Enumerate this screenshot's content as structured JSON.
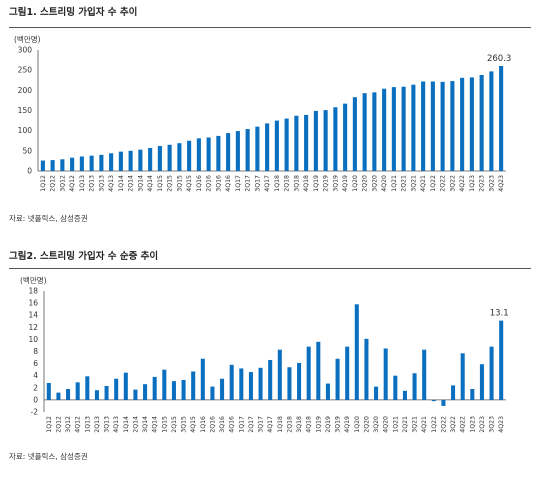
{
  "figures": [
    {
      "title": "그림1.  스트리밍 가입자 수 추이",
      "source": "자료: 넷플릭스, 삼성증권"
    },
    {
      "title": "그림2.  스트리밍 가입자 수 순증 추이",
      "source": "자료: 넷플릭스, 삼성증권"
    }
  ],
  "colors": {
    "bar": "#0a6fbf",
    "axis": "#555555"
  },
  "chart_data": [
    {
      "type": "bar",
      "unit_label": "(백만명)",
      "ylim": [
        0,
        300
      ],
      "yticks": [
        0,
        50,
        100,
        150,
        200,
        250,
        300
      ],
      "categories": [
        "1Q12",
        "2Q12",
        "3Q12",
        "4Q12",
        "1Q13",
        "2Q13",
        "3Q13",
        "4Q13",
        "1Q14",
        "2Q14",
        "3Q14",
        "4Q14",
        "1Q15",
        "2Q15",
        "3Q15",
        "4Q15",
        "1Q16",
        "2Q16",
        "3Q16",
        "4Q16",
        "1Q17",
        "2Q17",
        "3Q17",
        "4Q17",
        "1Q18",
        "2Q18",
        "3Q18",
        "4Q18",
        "1Q19",
        "2Q19",
        "3Q19",
        "4Q19",
        "1Q20",
        "2Q20",
        "3Q20",
        "4Q20",
        "1Q21",
        "2Q21",
        "3Q21",
        "4Q21",
        "1Q22",
        "2Q22",
        "3Q22",
        "4Q22",
        "1Q23",
        "2Q23",
        "3Q23",
        "4Q23"
      ],
      "xtick_labels": [
        "1Q12",
        "2Q12",
        "3Q12",
        "4Q12",
        "1Q13",
        "2Q13",
        "3Q13",
        "4Q13",
        "1Q14",
        "2Q14",
        "3Q14",
        "4Q14",
        "1Q15",
        "2Q15",
        "3Q15",
        "4Q15",
        "1Q16",
        "2Q16",
        "3Q16",
        "4Q16",
        "1Q17",
        "2Q17",
        "3Q17",
        "4Q17",
        "1Q18",
        "2Q18",
        "3Q18",
        "4Q18",
        "1Q19",
        "2Q19",
        "3Q19",
        "4Q19",
        "1Q20",
        "2Q20",
        "3Q20",
        "4Q20",
        "1Q21",
        "2Q21",
        "3Q21",
        "4Q21",
        "1Q22",
        "2Q22",
        "3Q22",
        "4Q22",
        "1Q23",
        "2Q23",
        "3Q23",
        "4Q23"
      ],
      "values": [
        26,
        27,
        29,
        33,
        36,
        38,
        40,
        44,
        48,
        50,
        53,
        57,
        62,
        65,
        69,
        75,
        81,
        83,
        87,
        94,
        99,
        104,
        110,
        118,
        125,
        130,
        137,
        139,
        149,
        151,
        158,
        167,
        183,
        193,
        195,
        204,
        208,
        209,
        214,
        222,
        222,
        221,
        223,
        231,
        232,
        238,
        247,
        260.3
      ],
      "data_labels": [
        {
          "index": 47,
          "text": "260.3"
        }
      ]
    },
    {
      "type": "bar",
      "unit_label": "(백만명)",
      "ylim": [
        -2,
        18
      ],
      "yticks": [
        -2,
        0,
        2,
        4,
        6,
        8,
        10,
        12,
        14,
        16,
        18
      ],
      "categories": [
        "1Q12",
        "2Q12",
        "3Q12",
        "4Q12",
        "1Q13",
        "2Q13",
        "3Q13",
        "4Q13",
        "1Q14",
        "2Q14",
        "3Q14",
        "4Q14",
        "1Q15",
        "2Q15",
        "3Q15",
        "4Q15",
        "1Q16",
        "2Q16",
        "3Q16",
        "4Q16",
        "1Q17",
        "2Q17",
        "3Q17",
        "4Q17",
        "1Q18",
        "2Q18",
        "3Q18",
        "4Q18",
        "1Q19",
        "2Q19",
        "3Q19",
        "4Q19",
        "1Q20",
        "2Q20",
        "3Q20",
        "4Q20",
        "1Q21",
        "2Q21",
        "3Q21",
        "4Q21",
        "1Q22",
        "2Q22",
        "3Q22",
        "4Q22",
        "1Q23",
        "2Q23",
        "3Q23",
        "4Q23"
      ],
      "xtick_labels": [
        "1Q12",
        "2Q12",
        "3Q12",
        "4Q12",
        "1Q13",
        "2Q13",
        "3Q13",
        "4Q13",
        "1Q14",
        "2Q14",
        "3Q14",
        "4Q14",
        "1Q15",
        "2Q15",
        "3Q15",
        "4Q15",
        "1Q16",
        "2Q16",
        "3Q16",
        "4Q16",
        "1Q17",
        "2Q17",
        "3Q17",
        "4Q17",
        "1Q18",
        "2Q18",
        "3Q18",
        "4Q18",
        "1Q19",
        "2Q19",
        "3Q19",
        "4Q19",
        "1Q20",
        "2Q20",
        "3Q20",
        "4Q20",
        "1Q21",
        "2Q21",
        "3Q21",
        "4Q21",
        "1Q22",
        "2Q22",
        "3Q22",
        "4Q22",
        "1Q23",
        "2Q23",
        "3Q23",
        "4Q23"
      ],
      "values": [
        2.8,
        1.2,
        1.8,
        2.9,
        3.9,
        1.6,
        2.3,
        3.5,
        4.5,
        1.7,
        2.6,
        3.8,
        5.0,
        3.1,
        3.3,
        4.7,
        6.8,
        2.2,
        3.5,
        5.8,
        5.2,
        4.6,
        5.3,
        6.6,
        8.3,
        5.4,
        6.1,
        8.8,
        9.6,
        2.7,
        6.8,
        8.8,
        15.8,
        10.1,
        2.2,
        8.5,
        4.0,
        1.5,
        4.4,
        8.3,
        -0.2,
        -1.0,
        2.4,
        7.7,
        1.8,
        5.9,
        8.8,
        13.1
      ],
      "data_labels": [
        {
          "index": 47,
          "text": "13.1"
        }
      ]
    }
  ]
}
